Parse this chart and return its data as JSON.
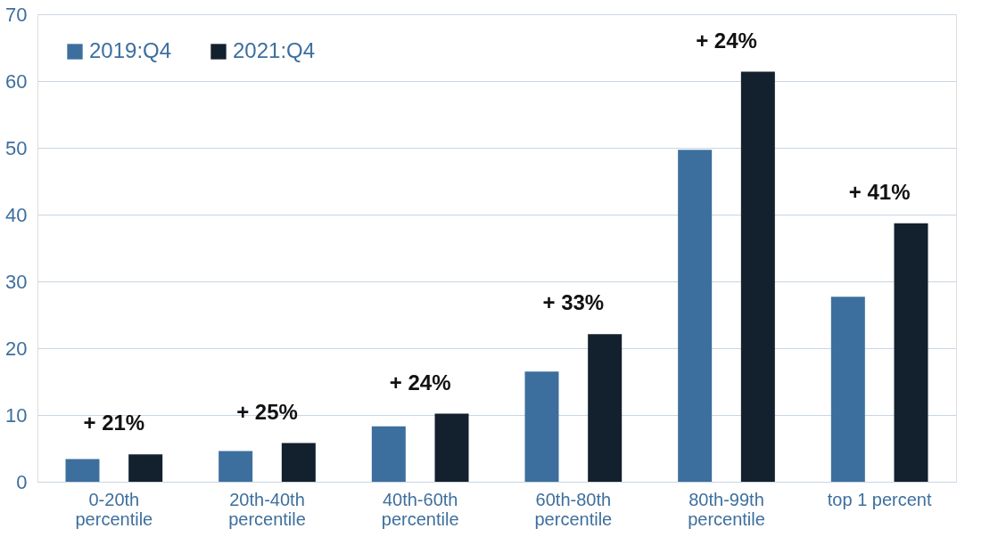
{
  "chart_data": {
    "type": "bar",
    "categories": [
      "0-20th\npercentile",
      "20th-40th\npercentile",
      "40th-60th\npercentile",
      "60th-80th\npercentile",
      "80th-99th\npercentile",
      "top 1 percent"
    ],
    "series": [
      {
        "name": "2019:Q4",
        "color": "#3d6f9e",
        "values": [
          3.4,
          4.6,
          8.3,
          16.5,
          49.7,
          27.7
        ]
      },
      {
        "name": "2021:Q4",
        "color": "#13202e",
        "values": [
          4.1,
          5.8,
          10.2,
          22.1,
          61.4,
          38.7
        ]
      }
    ],
    "ylim": [
      0,
      70
    ],
    "yticks": [
      0,
      10,
      20,
      30,
      40,
      50,
      60,
      70
    ],
    "grid": "y",
    "legend": "top left",
    "annotations": [
      "+ 21%",
      "+ 25%",
      "+ 24%",
      "+ 33%",
      "+ 24%",
      "+ 41%"
    ]
  }
}
